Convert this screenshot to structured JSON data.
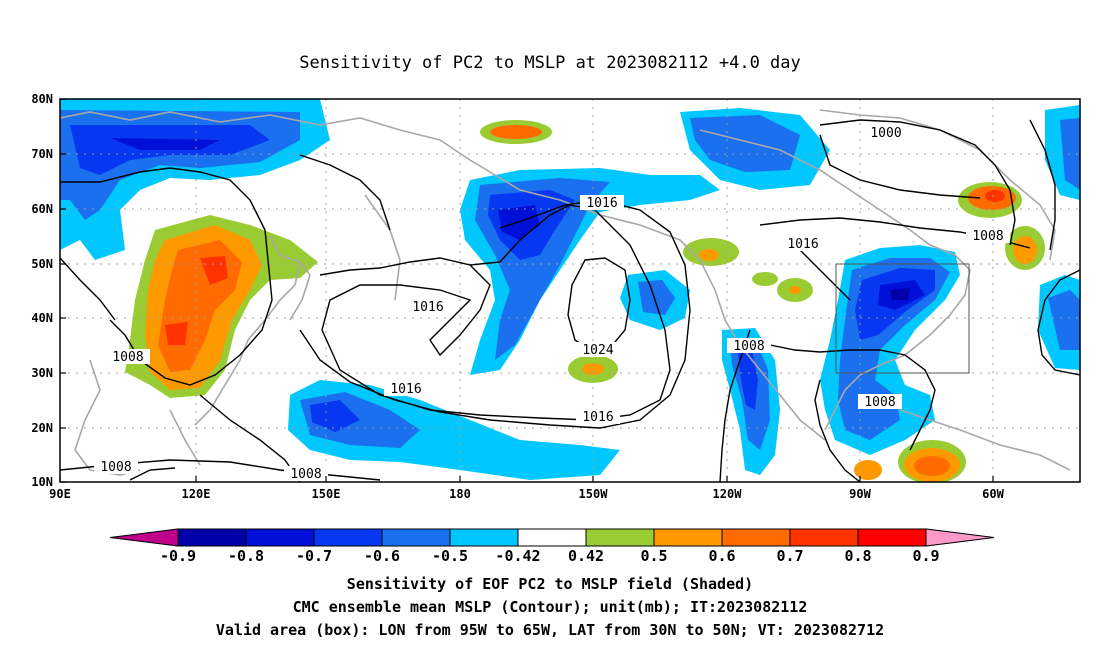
{
  "title": "Sensitivity of PC2 to MSLP at 2023082112 +4.0 day",
  "map": {
    "lon_labels": [
      "90E",
      "120E",
      "150E",
      "180",
      "150W",
      "120W",
      "90W",
      "60W"
    ],
    "lat_labels": [
      "80N",
      "70N",
      "60N",
      "50N",
      "40N",
      "30N",
      "20N",
      "10N"
    ],
    "contour_labels": [
      "1000",
      "1008",
      "1008",
      "1008",
      "1008",
      "1008",
      "1008",
      "1016",
      "1016",
      "1016",
      "1016",
      "1016",
      "1024"
    ],
    "box": {
      "lon_from": "95W",
      "lon_to": "65W",
      "lat_from": "30N",
      "lat_to": "50N"
    },
    "colors": {
      "land_outline": "#a8a8a8",
      "contour": "#000000",
      "grid": "#a0a0a0"
    }
  },
  "colorbar": {
    "labels": [
      "-0.9",
      "-0.8",
      "-0.7",
      "-0.6",
      "-0.5",
      "-0.42",
      "0.42",
      "0.5",
      "0.6",
      "0.7",
      "0.8",
      "0.9"
    ],
    "colors": [
      "#c0008a",
      "#0000a8",
      "#0010d8",
      "#0538f0",
      "#1a70ee",
      "#00c8ff",
      "#ffffff",
      "#99cc33",
      "#ff9900",
      "#ff6b00",
      "#ff3300",
      "#ff0000",
      "#ff99c8"
    ]
  },
  "captions": [
    "Sensitivity of EOF PC2 to MSLP field (Shaded)",
    "CMC ensemble mean MSLP (Contour); unit(mb); IT:2023082112",
    "Valid area (box): LON from 95W to 65W, LAT from 30N to 50N; VT: 2023082712"
  ]
}
